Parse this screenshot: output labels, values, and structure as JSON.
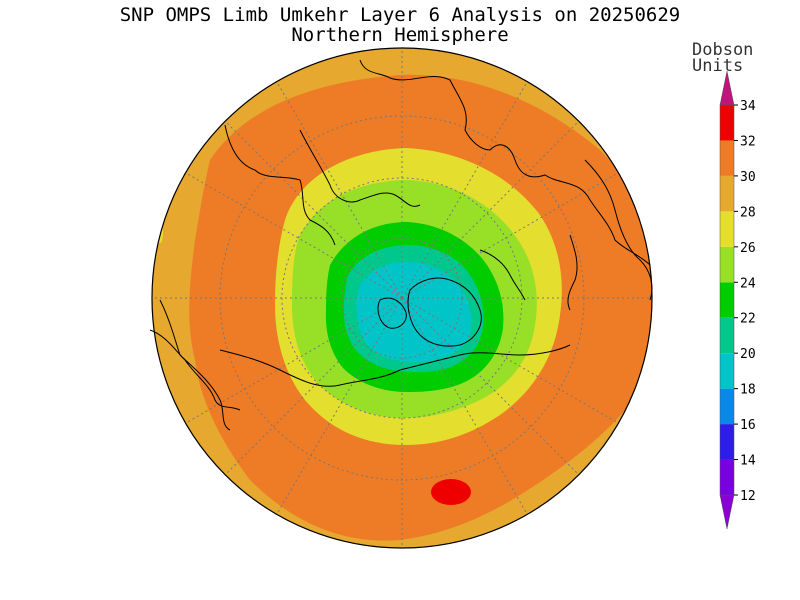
{
  "title": {
    "line1": "SNP OMPS Limb Umkehr Layer 6 Analysis on 20250629",
    "line2": "Northern Hemisphere"
  },
  "units": {
    "line1": "Dobson",
    "line2": "Units"
  },
  "colorbar": {
    "ticks": [
      "12",
      "14",
      "16",
      "18",
      "20",
      "22",
      "24",
      "26",
      "28",
      "30",
      "32",
      "34"
    ],
    "bands": [
      {
        "range": "<12",
        "color": "#8a00d4"
      },
      {
        "range": "12-14",
        "color": "#7a00e0"
      },
      {
        "range": "14-16",
        "color": "#2d1de6"
      },
      {
        "range": "16-18",
        "color": "#0a88e8"
      },
      {
        "range": "18-20",
        "color": "#00c4c8"
      },
      {
        "range": "20-22",
        "color": "#00c88c"
      },
      {
        "range": "22-24",
        "color": "#00cc00"
      },
      {
        "range": "24-26",
        "color": "#98e028"
      },
      {
        "range": "26-28",
        "color": "#e4de2e"
      },
      {
        "range": "28-30",
        "color": "#e6a82e"
      },
      {
        "range": "30-32",
        "color": "#ee7c26"
      },
      {
        "range": "32-34",
        "color": "#ee0000"
      },
      {
        "range": ">34",
        "color": "#c0147c"
      }
    ]
  },
  "map": {
    "projection": "polar-stereographic",
    "hemisphere": "north",
    "background_band": "28-30",
    "features": [
      {
        "name": "outer-orange-ring",
        "band": "30-32"
      },
      {
        "name": "yellow-ring",
        "band": "26-28"
      },
      {
        "name": "light-green-ring",
        "band": "24-26"
      },
      {
        "name": "green-ring",
        "band": "22-24"
      },
      {
        "name": "teal-ring",
        "band": "20-22"
      },
      {
        "name": "polar-minimum",
        "band": "18-20"
      },
      {
        "name": "local-maximum",
        "band": "32-34"
      }
    ]
  }
}
